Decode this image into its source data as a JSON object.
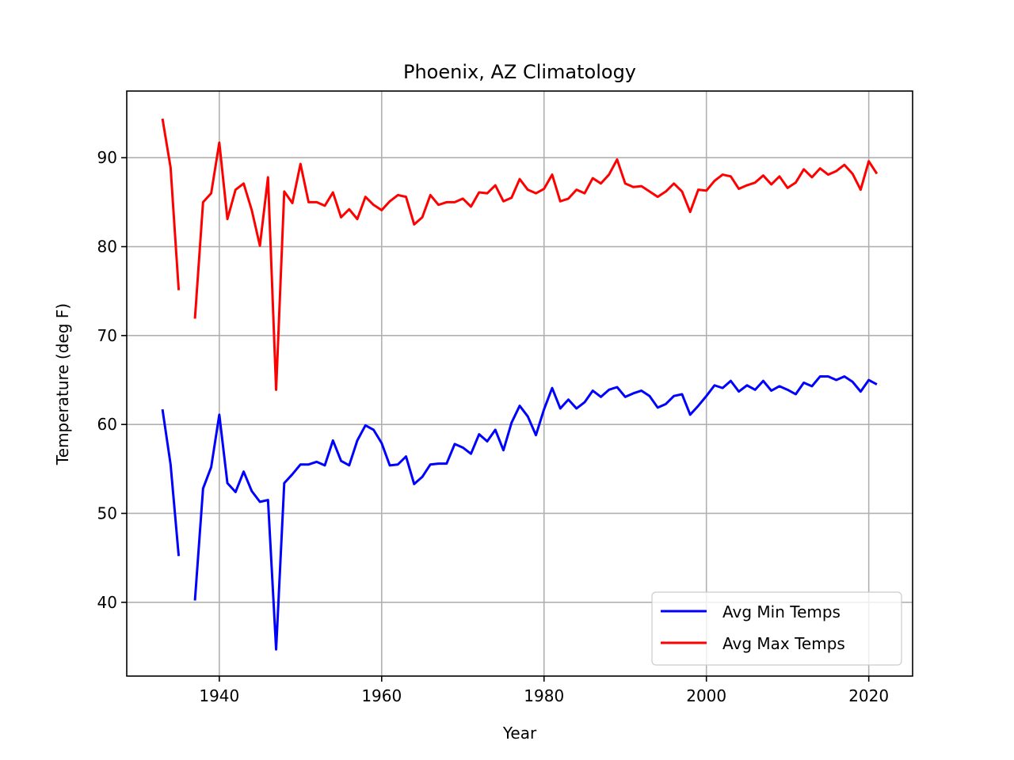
{
  "chart_data": {
    "type": "line",
    "title": "Phoenix, AZ Climatology",
    "xlabel": "Year",
    "ylabel": "Temperature (deg F)",
    "xlim": [
      1928.6,
      1925.4
    ],
    "xlim_note": "",
    "x_range": [
      1928.6,
      2025.4
    ],
    "ylim": [
      31.7,
      97.5
    ],
    "xticks": [
      1940,
      1960,
      1980,
      2000,
      2020
    ],
    "yticks": [
      40,
      50,
      60,
      70,
      80,
      90
    ],
    "grid": true,
    "legend_position": "lower-right",
    "x": [
      1933,
      1934,
      1935,
      1936,
      1937,
      1938,
      1939,
      1940,
      1941,
      1942,
      1943,
      1944,
      1945,
      1946,
      1947,
      1948,
      1949,
      1950,
      1951,
      1952,
      1953,
      1954,
      1955,
      1956,
      1957,
      1958,
      1959,
      1960,
      1961,
      1962,
      1963,
      1964,
      1965,
      1966,
      1967,
      1968,
      1969,
      1970,
      1971,
      1972,
      1973,
      1974,
      1975,
      1976,
      1977,
      1978,
      1979,
      1980,
      1981,
      1982,
      1983,
      1984,
      1985,
      1986,
      1987,
      1988,
      1989,
      1990,
      1991,
      1992,
      1993,
      1994,
      1995,
      1996,
      1997,
      1998,
      1999,
      2000,
      2001,
      2002,
      2003,
      2004,
      2005,
      2006,
      2007,
      2008,
      2009,
      2010,
      2011,
      2012,
      2013,
      2014,
      2015,
      2016,
      2017,
      2018,
      2019,
      2020,
      2021
    ],
    "series": [
      {
        "name": "Avg Min Temps",
        "color": "#0000ff",
        "values": [
          61.7,
          55.5,
          45.2,
          null,
          40.2,
          52.8,
          55.2,
          61.1,
          53.4,
          52.4,
          54.7,
          52.5,
          51.3,
          51.5,
          34.7,
          53.4,
          54.4,
          55.5,
          55.5,
          55.8,
          55.4,
          58.2,
          55.9,
          55.4,
          58.2,
          59.9,
          59.4,
          57.9,
          55.4,
          55.5,
          56.4,
          53.3,
          54.1,
          55.5,
          55.6,
          55.6,
          57.8,
          57.4,
          56.7,
          58.9,
          58.1,
          59.4,
          57.1,
          60.2,
          62.1,
          60.9,
          58.8,
          61.7,
          64.1,
          61.8,
          62.8,
          61.8,
          62.5,
          63.8,
          63.1,
          63.9,
          64.2,
          63.1,
          63.5,
          63.8,
          63.2,
          61.9,
          62.3,
          63.2,
          63.4,
          61.1,
          62.1,
          63.2,
          64.4,
          64.1,
          64.9,
          63.7,
          64.4,
          63.9,
          64.9,
          63.8,
          64.3,
          63.9,
          63.4,
          64.7,
          64.3,
          65.4,
          65.4,
          65.0,
          65.4,
          64.8,
          63.7,
          65.0,
          64.5
        ]
      },
      {
        "name": "Avg Max Temps",
        "color": "#ff0000",
        "values": [
          94.4,
          88.9,
          75.1,
          null,
          71.9,
          85.0,
          86.0,
          91.7,
          83.1,
          86.4,
          87.1,
          84.1,
          80.1,
          87.8,
          63.9,
          86.2,
          84.9,
          89.3,
          85.0,
          85.0,
          84.6,
          86.1,
          83.3,
          84.2,
          83.1,
          85.6,
          84.7,
          84.1,
          85.1,
          85.8,
          85.6,
          82.5,
          83.3,
          85.8,
          84.7,
          85.0,
          85.0,
          85.4,
          84.5,
          86.1,
          86.0,
          86.9,
          85.1,
          85.5,
          87.6,
          86.4,
          86.0,
          86.5,
          88.1,
          85.1,
          85.4,
          86.4,
          86.0,
          87.7,
          87.1,
          88.1,
          89.8,
          87.1,
          86.7,
          86.8,
          86.2,
          85.6,
          86.2,
          87.1,
          86.2,
          83.9,
          86.4,
          86.3,
          87.4,
          88.1,
          87.9,
          86.5,
          86.9,
          87.2,
          88.0,
          87.0,
          87.9,
          86.6,
          87.2,
          88.7,
          87.8,
          88.8,
          88.1,
          88.5,
          89.2,
          88.2,
          86.4,
          89.6,
          88.2
        ]
      }
    ]
  }
}
